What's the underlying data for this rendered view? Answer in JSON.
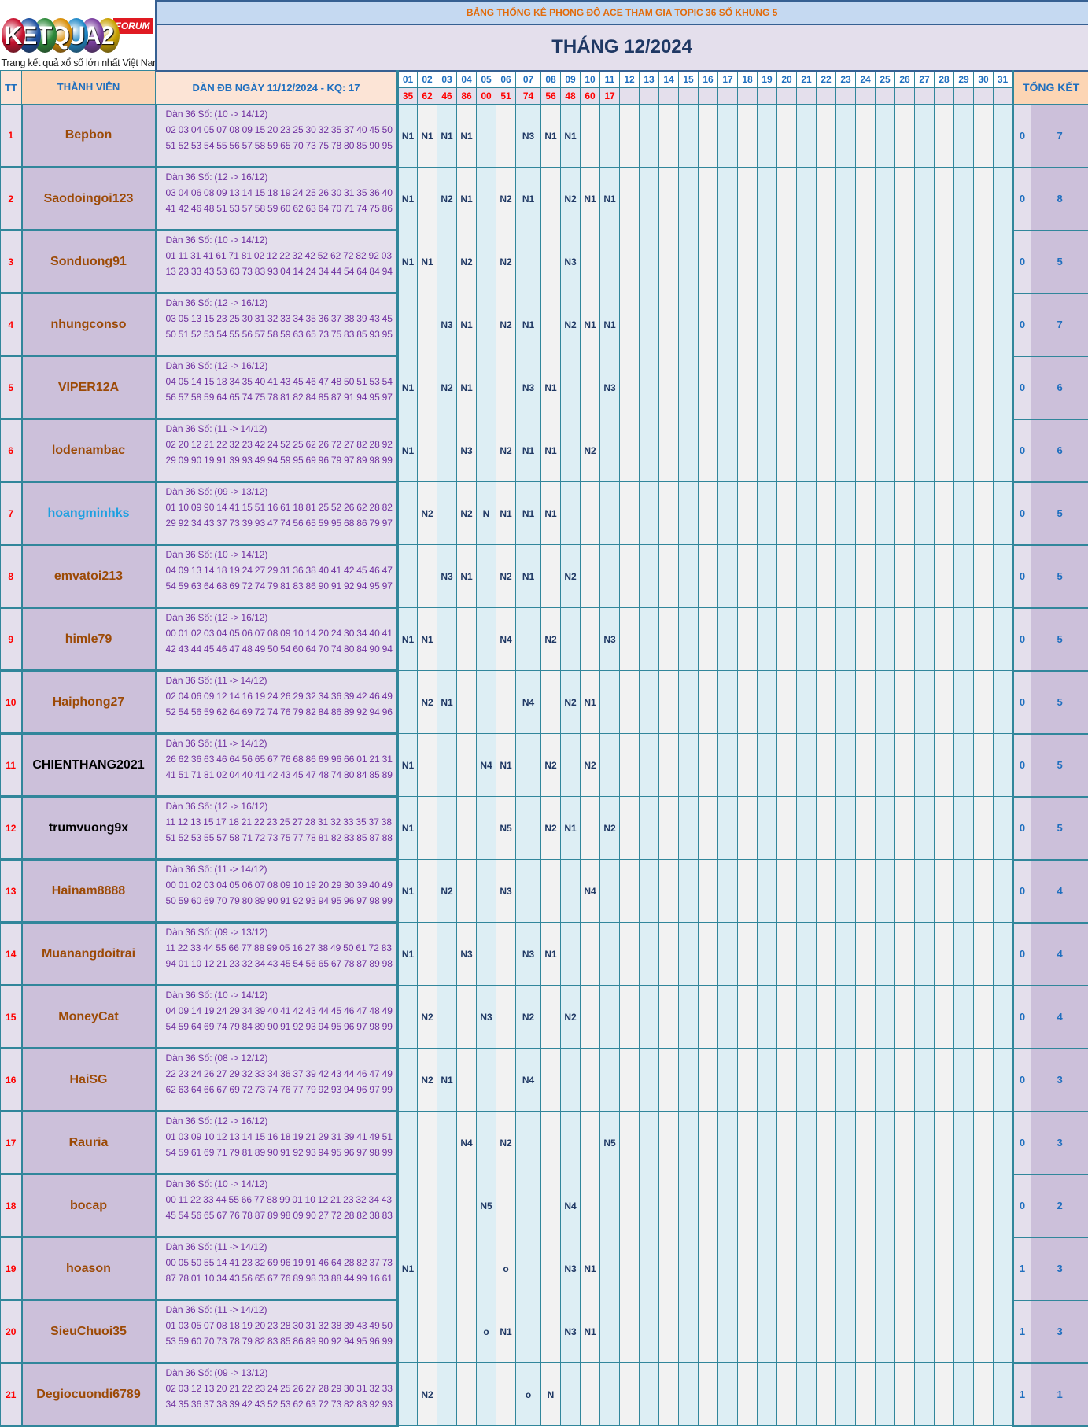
{
  "logo": {
    "letters": [
      "K",
      "E",
      "T",
      "Q",
      "U",
      "A",
      "2"
    ],
    "colors": [
      "#C8102E",
      "#1B4FA0",
      "#2E8B3A",
      "#D98E04",
      "#1E88C8",
      "#7B3FA0",
      "#C9A100"
    ],
    "badge": "FORUM",
    "tagline": "Trang kết quả xổ số lớn nhất Việt Nam"
  },
  "header": {
    "subtitle": "BẢNG THỐNG KÊ PHONG ĐỘ ACE THAM GIA TOPIC 36 SỐ KHUNG 5",
    "title": "THÁNG 12/2024",
    "col_tt": "TT",
    "col_member": "THÀNH VIÊN",
    "col_dan": "DÀN ĐB NGÀY 11/12/2024 - KQ: 17",
    "col_summary": "TỔNG KẾT",
    "days": [
      "01",
      "02",
      "03",
      "04",
      "05",
      "06",
      "07",
      "08",
      "09",
      "10",
      "11",
      "12",
      "13",
      "14",
      "15",
      "16",
      "17",
      "18",
      "19",
      "20",
      "21",
      "22",
      "23",
      "24",
      "25",
      "26",
      "27",
      "28",
      "29",
      "30",
      "31"
    ],
    "results": [
      "35",
      "62",
      "46",
      "86",
      "00",
      "51",
      "74",
      "56",
      "48",
      "60",
      "17",
      "",
      "",
      "",
      "",
      "",
      "",
      "",
      "",
      "",
      "",
      "",
      "",
      "",
      "",
      "",
      "",
      "",
      "",
      "",
      ""
    ]
  },
  "colors": {
    "name_default": "#9C4A06",
    "name_blue": "#1EA0E0",
    "name_black": "#000000",
    "row_number": "#FF0000",
    "marks": "#1F3864"
  },
  "rows": [
    {
      "tt": "1",
      "name": "Bepbon",
      "name_color": "#9C4A06",
      "dan_label": "Dàn 36 Số: (10 -> 14/12)",
      "dan_numbers": "02 03 04 05 07 08 09 15 20 23 25 30 32 35 37 40 45 50 51 52 53 54 55 56 57 58 59 65 70 73 75 78 80 85 90 95",
      "marks": [
        "N1",
        "N1",
        "N1",
        "N1",
        "",
        "",
        "N3",
        "N1",
        "N1",
        "",
        ""
      ],
      "sum_a": "0",
      "sum_b": "7"
    },
    {
      "tt": "2",
      "name": "Saodoingoi123",
      "name_color": "#9C4A06",
      "dan_label": "Dàn 36 Số: (12 -> 16/12)",
      "dan_numbers": "03 04 06 08 09 13 14 15 18 19 24 25 26 30 31 35 36 40 41 42 46 48 51 53 57 58 59 60 62 63 64 70 71 74 75 86",
      "marks": [
        "N1",
        "",
        "N2",
        "N1",
        "",
        "N2",
        "N1",
        "",
        "N2",
        "N1",
        "N1"
      ],
      "sum_a": "0",
      "sum_b": "8"
    },
    {
      "tt": "3",
      "name": "Sonduong91",
      "name_color": "#9C4A06",
      "dan_label": "Dàn 36 Số: (10 -> 14/12)",
      "dan_numbers": "01 11 31 41 61 71 81 02 12 22 32 42 52 62 72 82 92 03 13 23 33 43 53 63 73 83 93 04 14 24 34 44 54 64 84 94",
      "marks": [
        "N1",
        "N1",
        "",
        "N2",
        "",
        "N2",
        "",
        "",
        "N3",
        "",
        ""
      ],
      "sum_a": "0",
      "sum_b": "5"
    },
    {
      "tt": "4",
      "name": "nhungconso",
      "name_color": "#9C4A06",
      "dan_label": "Dàn 36 Số: (12 -> 16/12)",
      "dan_numbers": "03 05 13 15 23 25 30 31 32 33 34 35 36 37 38 39 43 45 50 51 52 53 54 55 56 57 58 59 63 65 73 75 83 85 93 95",
      "marks": [
        "",
        "",
        "N3",
        "N1",
        "",
        "N2",
        "N1",
        "",
        "N2",
        "N1",
        "N1"
      ],
      "sum_a": "0",
      "sum_b": "7"
    },
    {
      "tt": "5",
      "name": "VIPER12A",
      "name_color": "#9C4A06",
      "dan_label": "Dàn 36 Số: (12 -> 16/12)",
      "dan_numbers": "04 05 14 15 18 34 35 40 41 43 45 46 47 48 50 51 53 54 56 57 58 59 64 65 74 75 78 81 82 84 85 87 91 94 95 97",
      "marks": [
        "N1",
        "",
        "N2",
        "N1",
        "",
        "",
        "N3",
        "N1",
        "",
        "",
        "N3"
      ],
      "sum_a": "0",
      "sum_b": "6"
    },
    {
      "tt": "6",
      "name": "lodenambac",
      "name_color": "#9C4A06",
      "dan_label": "Dàn 36 Số: (11 -> 14/12)",
      "dan_numbers": "02 20 12 21 22 32 23 42 24 52 25 62 26 72 27 82 28 92 29 09 90 19 91 39 93 49 94 59 95 69 96 79 97 89 98 99",
      "marks": [
        "N1",
        "",
        "",
        "N3",
        "",
        "N2",
        "N1",
        "N1",
        "",
        "N2",
        ""
      ],
      "sum_a": "0",
      "sum_b": "6"
    },
    {
      "tt": "7",
      "name": "hoangminhks",
      "name_color": "#1EA0E0",
      "dan_label": "Dàn 36 Số: (09 -> 13/12)",
      "dan_numbers": "01 10 09 90 14 41 15 51 16 61 18 81 25 52 26 62 28 82 29 92 34 43 37 73 39 93 47 74 56 65 59 95 68 86 79 97",
      "marks": [
        "",
        "N2",
        "",
        "N2",
        "N",
        "N1",
        "N1",
        "N1",
        "",
        "",
        ""
      ],
      "sum_a": "0",
      "sum_b": "5"
    },
    {
      "tt": "8",
      "name": "emvatoi213",
      "name_color": "#9C4A06",
      "dan_label": "Dàn 36 Số: (10 -> 14/12)",
      "dan_numbers": "04 09 13 14 18 19 24 27 29 31 36 38 40 41 42 45 46 47 54 59 63 64 68 69 72 74 79 81 83 86 90 91 92 94 95 97",
      "marks": [
        "",
        "",
        "N3",
        "N1",
        "",
        "N2",
        "N1",
        "",
        "N2",
        "",
        ""
      ],
      "sum_a": "0",
      "sum_b": "5"
    },
    {
      "tt": "9",
      "name": "himle79",
      "name_color": "#9C4A06",
      "dan_label": "Dàn 36 Số: (12 -> 16/12)",
      "dan_numbers": "00 01 02 03 04 05 06 07 08 09 10 14 20 24 30 34 40 41 42 43 44 45 46 47 48 49 50 54 60 64 70 74 80 84 90 94",
      "marks": [
        "N1",
        "N1",
        "",
        "",
        "",
        "N4",
        "",
        "N2",
        "",
        "",
        "N3"
      ],
      "sum_a": "0",
      "sum_b": "5"
    },
    {
      "tt": "10",
      "name": "Haiphong27",
      "name_color": "#9C4A06",
      "dan_label": "Dàn 36 Số: (11 -> 14/12)",
      "dan_numbers": "02 04 06 09 12 14 16 19 24 26 29 32 34 36 39 42 46 49 52 54 56 59 62 64 69 72 74 76 79 82 84 86 89 92 94 96",
      "marks": [
        "",
        "N2",
        "N1",
        "",
        "",
        "",
        "N4",
        "",
        "N2",
        "N1",
        ""
      ],
      "sum_a": "0",
      "sum_b": "5"
    },
    {
      "tt": "11",
      "name": "CHIENTHANG2021",
      "name_color": "#000000",
      "dan_label": "Dàn 36 Số: (11 -> 14/12)",
      "dan_numbers": "26 62 36 63 46 64 56 65 67 76 68 86 69 96 66 01 21 31 41 51 71 81 02 04 40 41 42 43 45 47 48 74 80 84 85 89",
      "marks": [
        "N1",
        "",
        "",
        "",
        "N4",
        "N1",
        "",
        "N2",
        "",
        "N2",
        ""
      ],
      "sum_a": "0",
      "sum_b": "5"
    },
    {
      "tt": "12",
      "name": "trumvuong9x",
      "name_color": "#000000",
      "dan_label": "Dàn 36 Số: (12 -> 16/12)",
      "dan_numbers": "11 12 13 15 17 18 21 22 23 25 27 28 31 32 33 35 37 38 51 52 53 55 57 58 71 72 73 75 77 78 81 82 83 85 87 88",
      "marks": [
        "N1",
        "",
        "",
        "",
        "",
        "N5",
        "",
        "N2",
        "N1",
        "",
        "N2"
      ],
      "sum_a": "0",
      "sum_b": "5"
    },
    {
      "tt": "13",
      "name": "Hainam8888",
      "name_color": "#9C4A06",
      "dan_label": "Dàn 36 Số: (11 -> 14/12)",
      "dan_numbers": "00 01 02 03 04 05 06 07 08 09 10 19 20 29 30 39 40 49 50 59 60 69 70 79 80 89 90 91 92 93 94 95 96 97 98 99",
      "marks": [
        "N1",
        "",
        "N2",
        "",
        "",
        "N3",
        "",
        "",
        "",
        "N4",
        ""
      ],
      "sum_a": "0",
      "sum_b": "4"
    },
    {
      "tt": "14",
      "name": "Muanangdoitrai",
      "name_color": "#9C4A06",
      "dan_label": "Dàn 36 Số: (09 -> 13/12)",
      "dan_numbers": "11 22 33 44 55 66 77 88 99 05 16 27 38 49 50 61 72 83 94 01 10 12 21 23 32 34 43 45 54 56 65 67 78 87 89 98",
      "marks": [
        "N1",
        "",
        "",
        "N3",
        "",
        "",
        "N3",
        "N1",
        "",
        "",
        ""
      ],
      "sum_a": "0",
      "sum_b": "4"
    },
    {
      "tt": "15",
      "name": "MoneyCat",
      "name_color": "#9C4A06",
      "dan_label": "Dàn 36 Số: (10 -> 14/12)",
      "dan_numbers": "04 09 14 19 24 29 34 39 40 41 42 43 44 45 46 47 48 49 54 59 64 69 74 79 84 89 90 91 92 93 94 95 96 97 98 99",
      "marks": [
        "",
        "N2",
        "",
        "",
        "N3",
        "",
        "N2",
        "",
        "N2",
        "",
        ""
      ],
      "sum_a": "0",
      "sum_b": "4"
    },
    {
      "tt": "16",
      "name": "HaiSG",
      "name_color": "#9C4A06",
      "dan_label": "Dàn 36 Số: (08 -> 12/12)",
      "dan_numbers": "22 23 24 26 27 29 32 33 34 36 37 39 42 43 44 46 47 49 62 63 64 66 67 69 72 73 74 76 77 79 92 93 94 96 97 99",
      "marks": [
        "",
        "N2",
        "N1",
        "",
        "",
        "",
        "N4",
        "",
        "",
        "",
        ""
      ],
      "sum_a": "0",
      "sum_b": "3"
    },
    {
      "tt": "17",
      "name": "Rauria",
      "name_color": "#9C4A06",
      "dan_label": "Dàn 36 Số: (12 -> 16/12)",
      "dan_numbers": "01 03 09 10 12 13 14 15 16 18 19 21 29 31 39 41 49 51 54 59 61 69 71 79 81 89 90 91 92 93 94 95 96 97 98 99",
      "marks": [
        "",
        "",
        "",
        "N4",
        "",
        "N2",
        "",
        "",
        "",
        "",
        "N5"
      ],
      "sum_a": "0",
      "sum_b": "3"
    },
    {
      "tt": "18",
      "name": "bocap",
      "name_color": "#9C4A06",
      "dan_label": "Dàn 36 Số: (10 -> 14/12)",
      "dan_numbers": "00 11 22 33 44 55 66 77 88 99 01 10 12 21 23 32 34 43 45 54 56 65 67 76 78 87 89 98 09 90 27 72 28 82 38 83",
      "marks": [
        "",
        "",
        "",
        "",
        "N5",
        "",
        "",
        "",
        "N4",
        "",
        ""
      ],
      "sum_a": "0",
      "sum_b": "2"
    },
    {
      "tt": "19",
      "name": "hoason",
      "name_color": "#9C4A06",
      "dan_label": "Dàn 36 Số: (11 -> 14/12)",
      "dan_numbers": "00 05 50 55 14 41 23 32 69 96 19 91 46 64 28 82 37 73 87 78 01 10 34 43 56 65 67 76 89 98 33 88 44 99 16 61",
      "marks": [
        "N1",
        "",
        "",
        "",
        "",
        "o",
        "",
        "",
        "N3",
        "N1",
        ""
      ],
      "sum_a": "1",
      "sum_b": "3"
    },
    {
      "tt": "20",
      "name": "SieuChuoi35",
      "name_color": "#9C4A06",
      "dan_label": "Dàn 36 Số: (11 -> 14/12)",
      "dan_numbers": "01 03 05 07 08 18 19 20 23 28 30 31 32 38 39 43 49 50 53 59 60 70 73 78 79 82 83 85 86 89 90 92 94 95 96 99",
      "marks": [
        "",
        "",
        "",
        "",
        "o",
        "N1",
        "",
        "",
        "N3",
        "N1",
        ""
      ],
      "sum_a": "1",
      "sum_b": "3"
    },
    {
      "tt": "21",
      "name": "Degiocuondi6789",
      "name_color": "#9C4A06",
      "dan_label": "Dàn 36 Số: (09 -> 13/12)",
      "dan_numbers": "02 03 12 13 20 21 22 23 24 25 26 27 28 29 30 31 32 33 34 35 36 37 38 39 42 43 52 53 62 63 72 73 82 83 92 93",
      "marks": [
        "",
        "N2",
        "",
        "",
        "",
        "",
        "o",
        "N",
        "",
        "",
        ""
      ],
      "sum_a": "1",
      "sum_b": "1"
    }
  ]
}
